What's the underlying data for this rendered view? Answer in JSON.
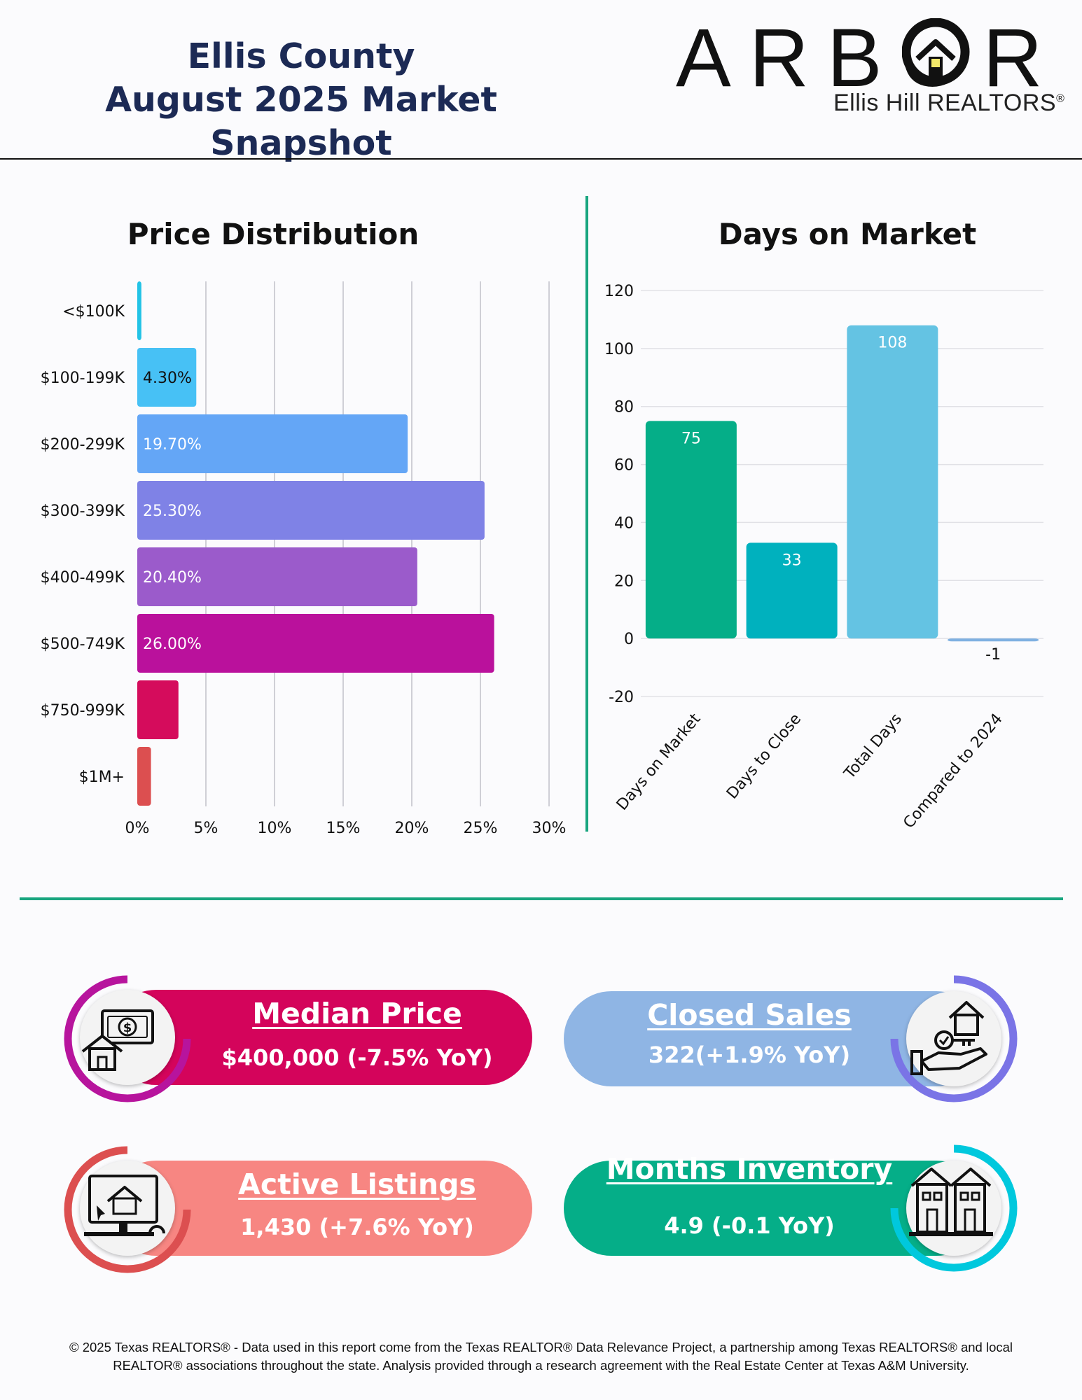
{
  "header": {
    "title_line1": "Ellis County",
    "title_line2": "August 2025 Market Snapshot",
    "logo_word": "ARBOR",
    "logo_sub": "Ellis Hill REALTORS",
    "logo_reg": "®"
  },
  "chart_data": [
    {
      "type": "bar",
      "orientation": "horizontal",
      "title": "Price Distribution",
      "categories": [
        "<$100K",
        "$100-199K",
        "$200-299K",
        "$300-399K",
        "$400-499K",
        "$500-749K",
        "$750-999K",
        "$1M+"
      ],
      "values": [
        0.3,
        4.3,
        19.7,
        25.3,
        20.4,
        26.0,
        3.0,
        1.0
      ],
      "data_labels": [
        "",
        "4.30%",
        "19.70%",
        "25.30%",
        "20.40%",
        "26.00%",
        "",
        ""
      ],
      "colors": [
        "#22c3e6",
        "#47c1f5",
        "#64a6f6",
        "#7f82e6",
        "#9b5bcb",
        "#ba119c",
        "#d50c5c",
        "#dc4f50"
      ],
      "xlim": [
        0,
        30
      ],
      "xticks": [
        "0%",
        "5%",
        "10%",
        "15%",
        "20%",
        "25%",
        "30%"
      ],
      "grid": true
    },
    {
      "type": "bar",
      "title": "Days on Market",
      "categories": [
        "Days on Market",
        "Days to Close",
        "Total Days",
        "Compared to 2024"
      ],
      "values": [
        75,
        33,
        108,
        -1
      ],
      "data_labels": [
        "75",
        "33",
        "108",
        "-1"
      ],
      "colors": [
        "#05ae88",
        "#00b1be",
        "#64c3e3",
        "#7fb0e1"
      ],
      "ylim": [
        -20,
        120
      ],
      "yticks": [
        "120",
        "100",
        "80",
        "60",
        "40",
        "20",
        "0",
        "-20"
      ],
      "grid": true
    }
  ],
  "stats": {
    "median": {
      "title": "Median Price",
      "value": "$400,000 (-7.5% YoY)",
      "icon": "money-house-icon"
    },
    "closed": {
      "title": "Closed Sales",
      "value": "322(+1.9% YoY)",
      "icon": "hand-house-key-icon"
    },
    "active": {
      "title": "Active Listings",
      "value": "1,430 (+7.6% YoY)",
      "icon": "computer-house-icon"
    },
    "months": {
      "title": "Months Inventory",
      "value": "4.9 (-0.1 YoY)",
      "icon": "townhouses-icon"
    }
  },
  "colors": {
    "navy": "#1c2a55",
    "green": "#19a57f",
    "median_pill": "#d4045b",
    "closed_pill": "#8fb5e4",
    "active_pill": "#f78682",
    "months_pill": "#05ae88"
  },
  "footer": {
    "line1": "© 2025 Texas REALTORS® - Data used in this report come from the Texas REALTOR® Data Relevance Project, a partnership among Texas REALTORS® and local",
    "line2": "REALTOR® associations throughout the state. Analysis provided through a research agreement with the Real Estate Center at Texas A&M University."
  }
}
